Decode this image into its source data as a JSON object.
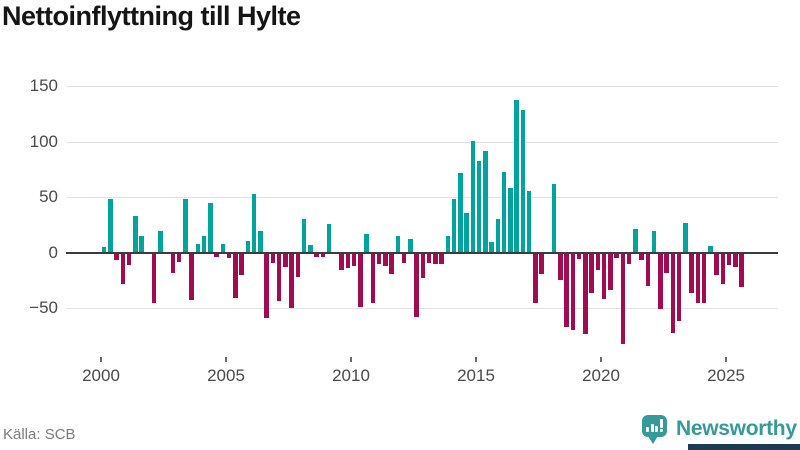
{
  "title": "Nettoinflyttning till Hylte",
  "source": "Källa: SCB",
  "brand": {
    "name": "Newsworthy",
    "icon": "newsworthy-speech-bubble-bar-chart-icon"
  },
  "colors": {
    "positive_bar": "#00A49C",
    "negative_bar": "#A10B50",
    "gridline": "#E3E3E3",
    "zero_axis": "#3C3C3C",
    "title_text": "#151515",
    "tick_text": "#4A4A4A",
    "source_text": "#7C7C7C",
    "brand_teal": "#349B99",
    "footer_bar_navy": "#1D3A53"
  },
  "chart_data": {
    "type": "bar",
    "title": "Nettoinflyttning till Hylte",
    "frequency": "quarterly",
    "start": "2000 Q1",
    "end": "2025 Q3",
    "legend": false,
    "grid": true,
    "x_axis": {
      "ticks": [
        2000,
        2005,
        2010,
        2015,
        2020,
        2025
      ]
    },
    "y_axis": {
      "ticks": [
        -50,
        0,
        50,
        100,
        150
      ],
      "range": [
        -95,
        160
      ]
    },
    "values_by_year": {
      "2000": [
        5,
        48,
        -7,
        -28
      ],
      "2001": [
        -11,
        33,
        15,
        0
      ],
      "2002": [
        -45,
        20,
        0,
        -18
      ],
      "2003": [
        -8,
        48,
        -43,
        8
      ],
      "2004": [
        15,
        45,
        -4,
        8
      ],
      "2005": [
        -5,
        -41,
        -20,
        11
      ],
      "2006": [
        53,
        20,
        -59,
        -9
      ],
      "2007": [
        -44,
        -13,
        -50,
        -22
      ],
      "2008": [
        30,
        7,
        -4,
        -4
      ],
      "2009": [
        26,
        0,
        -16,
        -14
      ],
      "2010": [
        -12,
        -49,
        17,
        -45
      ],
      "2011": [
        -10,
        -12,
        -19,
        15
      ],
      "2012": [
        -9,
        12,
        -58,
        -23
      ],
      "2013": [
        -9,
        -10,
        -10,
        15
      ],
      "2014": [
        48,
        72,
        36,
        101
      ],
      "2015": [
        83,
        92,
        10,
        30
      ],
      "2016": [
        73,
        58,
        138,
        129
      ],
      "2017": [
        56,
        -45,
        -19,
        0
      ],
      "2018": [
        62,
        -25,
        -67,
        -70
      ],
      "2019": [
        -6,
        -73,
        -36,
        -16
      ],
      "2020": [
        -42,
        -34,
        -5,
        -82
      ],
      "2021": [
        -10,
        21,
        -7,
        -30
      ],
      "2022": [
        20,
        -51,
        -18,
        -72
      ],
      "2023": [
        -62,
        27,
        -36,
        -45
      ],
      "2024": [
        -45,
        6,
        -20,
        -28
      ],
      "2025": [
        -11,
        -13,
        -31
      ]
    }
  }
}
